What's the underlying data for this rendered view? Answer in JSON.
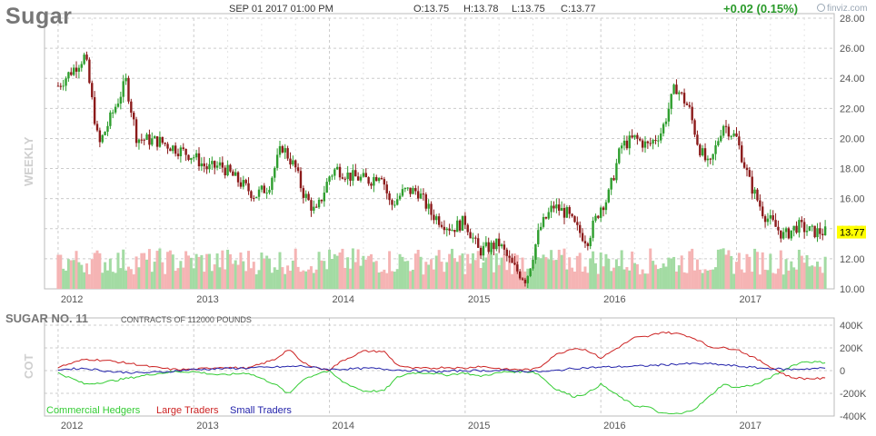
{
  "header": {
    "symbol": "Sugar",
    "datetime": "SEP 01 2017 01:00 PM",
    "open": "O:13.75",
    "high": "H:13.78",
    "low": "L:13.75",
    "close": "C:13.77",
    "change": "+0.02 (0.15%)",
    "logo": "finviz.com"
  },
  "colors": {
    "up": "#2e9e2e",
    "down": "#8b1a1a",
    "volume_up": "#a3dba3",
    "volume_down": "#f5b4b4",
    "commercial": "#33cc33",
    "large": "#cc2222",
    "small": "#2222aa",
    "last_price_bg": "#ffff00"
  },
  "chart_data": [
    {
      "type": "candlestick",
      "ylabel": "WEEKLY",
      "ylim": [
        10,
        28
      ],
      "y_ticks": [
        "28.00",
        "26.00",
        "24.00",
        "22.00",
        "20.00",
        "18.00",
        "16.00",
        "14.00",
        "12.00",
        "10.00"
      ],
      "x_ticks": [
        "2012",
        "2013",
        "2014",
        "2015",
        "2016",
        "2017"
      ],
      "last_price": "13.77",
      "grid": true,
      "close_path": {
        "x": [
          2012.0,
          2012.2,
          2012.3,
          2012.5,
          2012.58,
          2012.75,
          2012.9,
          2013.0,
          2013.1,
          2013.2,
          2013.35,
          2013.45,
          2013.55,
          2013.65,
          2013.75,
          2013.8,
          2013.9,
          2014.0,
          2014.05,
          2014.15,
          2014.3,
          2014.38,
          2014.45,
          2014.55,
          2014.65,
          2014.75,
          2014.9,
          2015.0,
          2015.1,
          2015.25,
          2015.35,
          2015.45,
          2015.55,
          2015.65,
          2015.75,
          2015.82,
          2015.9,
          2016.0,
          2016.05,
          2016.15,
          2016.25,
          2016.35,
          2016.45,
          2016.55,
          2016.65,
          2016.72,
          2016.8,
          2016.9,
          2017.0,
          2017.1,
          2017.2,
          2017.35,
          2017.45,
          2017.55,
          2017.67
        ],
        "close": [
          23.5,
          25.5,
          19.5,
          23.8,
          20.0,
          19.8,
          19.2,
          18.8,
          18.0,
          18.2,
          17.0,
          16.2,
          16.8,
          19.5,
          18.0,
          16.5,
          15.0,
          17.5,
          18.0,
          17.5,
          17.2,
          17.8,
          15.5,
          16.5,
          16.5,
          15.0,
          14.0,
          14.5,
          12.5,
          13.0,
          11.5,
          10.6,
          14.0,
          15.5,
          15.0,
          14.0,
          13.2,
          15.5,
          16.0,
          19.5,
          20.0,
          19.5,
          20.5,
          23.5,
          22.0,
          19.5,
          18.0,
          21.0,
          20.0,
          17.0,
          15.0,
          13.5,
          14.2,
          13.8,
          13.77
        ]
      },
      "volume": {
        "relative_range": [
          0.35,
          1.0
        ]
      }
    },
    {
      "type": "line",
      "title": "SUGAR NO. 11",
      "subtitle": "CONTRACTS OF 112000 POUNDS",
      "ylabel": "COT",
      "ylim": [
        -400,
        400
      ],
      "y_ticks": [
        "400K",
        "200K",
        "0",
        "-200K",
        "-400K"
      ],
      "x_ticks": [
        "2012",
        "2013",
        "2014",
        "2015",
        "2016",
        "2017"
      ],
      "series": [
        {
          "name": "Commercial Hedgers",
          "x": [
            2012.0,
            2012.2,
            2012.35,
            2012.55,
            2012.7,
            2012.85,
            2013.0,
            2013.2,
            2013.4,
            2013.6,
            2013.7,
            2013.8,
            2013.95,
            2014.0,
            2014.1,
            2014.25,
            2014.4,
            2014.5,
            2014.6,
            2014.75,
            2014.85,
            2015.0,
            2015.1,
            2015.3,
            2015.5,
            2015.55,
            2015.65,
            2015.8,
            2015.9,
            2016.0,
            2016.15,
            2016.25,
            2016.35,
            2016.45,
            2016.6,
            2016.7,
            2016.8,
            2016.9,
            2017.0,
            2017.15,
            2017.3,
            2017.4,
            2017.5,
            2017.67
          ],
          "values": [
            -20,
            -120,
            -100,
            -60,
            -30,
            -10,
            -10,
            -40,
            -20,
            -120,
            -210,
            -80,
            -10,
            -10,
            -100,
            -180,
            -180,
            -60,
            -20,
            -20,
            -40,
            -20,
            -50,
            -10,
            -10,
            -40,
            -150,
            -230,
            -200,
            -120,
            -240,
            -310,
            -320,
            -380,
            -380,
            -330,
            -230,
            -120,
            -150,
            -120,
            -30,
            40,
            80,
            70
          ]
        },
        {
          "name": "Large Traders",
          "x": [
            2012.0,
            2012.2,
            2012.35,
            2012.55,
            2012.7,
            2012.85,
            2013.0,
            2013.2,
            2013.4,
            2013.6,
            2013.7,
            2013.8,
            2013.95,
            2014.0,
            2014.1,
            2014.25,
            2014.4,
            2014.5,
            2014.6,
            2014.75,
            2014.85,
            2015.0,
            2015.1,
            2015.3,
            2015.5,
            2015.55,
            2015.65,
            2015.8,
            2015.9,
            2016.0,
            2016.15,
            2016.25,
            2016.35,
            2016.45,
            2016.6,
            2016.7,
            2016.8,
            2016.9,
            2017.0,
            2017.15,
            2017.3,
            2017.4,
            2017.5,
            2017.67
          ],
          "values": [
            30,
            100,
            90,
            60,
            30,
            10,
            10,
            30,
            20,
            100,
            190,
            70,
            10,
            10,
            90,
            170,
            170,
            50,
            20,
            20,
            30,
            20,
            40,
            10,
            10,
            30,
            130,
            200,
            180,
            110,
            220,
            290,
            300,
            340,
            320,
            280,
            210,
            200,
            190,
            100,
            0,
            -60,
            -70,
            -70
          ]
        },
        {
          "name": "Small Traders",
          "x": [
            2012.0,
            2012.2,
            2012.4,
            2012.6,
            2012.8,
            2013.0,
            2013.3,
            2013.6,
            2013.8,
            2014.0,
            2014.3,
            2014.6,
            2014.8,
            2015.0,
            2015.3,
            2015.6,
            2015.8,
            2016.0,
            2016.3,
            2016.6,
            2016.8,
            2017.0,
            2017.2,
            2017.4,
            2017.6,
            2017.67
          ],
          "values": [
            10,
            20,
            -10,
            -20,
            -10,
            10,
            20,
            30,
            40,
            10,
            20,
            0,
            -10,
            0,
            0,
            -10,
            20,
            30,
            40,
            60,
            60,
            40,
            20,
            10,
            20,
            20
          ]
        }
      ]
    }
  ]
}
